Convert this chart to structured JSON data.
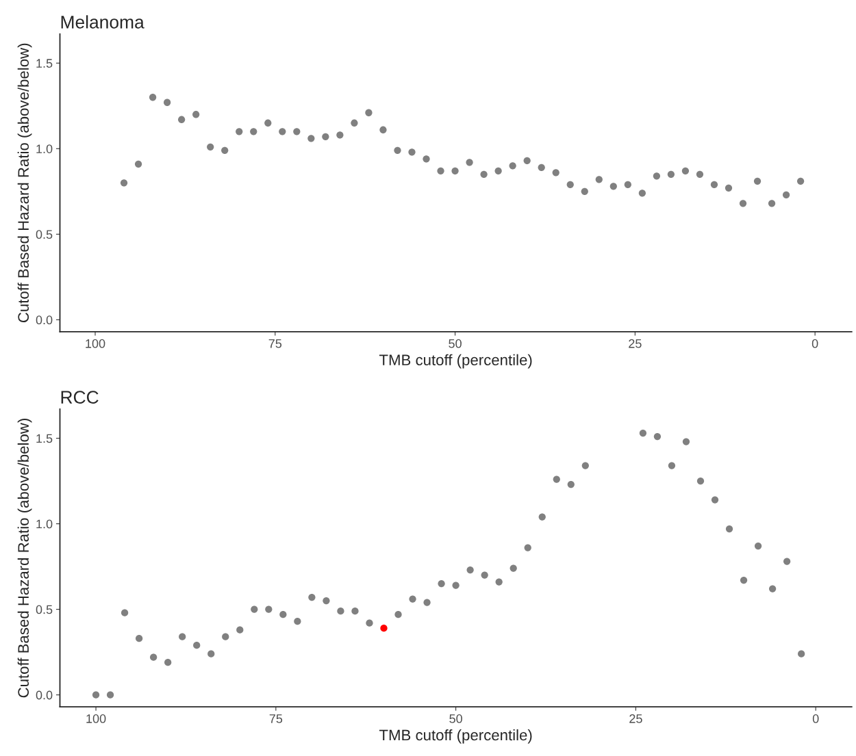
{
  "chart_data": [
    {
      "type": "scatter",
      "title": "Melanoma",
      "xlabel": "TMB cutoff (percentile)",
      "ylabel": "Cutoff Based Hazard Ratio (above/below)",
      "marker": "circle",
      "x": [
        96,
        94,
        92,
        90,
        88,
        86,
        84,
        82,
        80,
        78,
        76,
        74,
        72,
        70,
        68,
        66,
        64,
        62,
        60,
        58,
        56,
        54,
        52,
        50,
        48,
        46,
        44,
        42,
        40,
        38,
        36,
        34,
        32,
        30,
        28,
        26,
        24,
        22,
        20,
        18,
        16,
        14,
        12,
        10,
        8,
        6,
        4,
        2
      ],
      "values": [
        0.8,
        0.91,
        1.3,
        1.27,
        1.17,
        1.2,
        1.01,
        0.99,
        1.1,
        1.1,
        1.15,
        1.1,
        1.1,
        1.06,
        1.07,
        1.08,
        1.15,
        1.21,
        1.11,
        0.99,
        0.98,
        0.94,
        0.87,
        0.87,
        0.92,
        0.85,
        0.87,
        0.9,
        0.93,
        0.89,
        0.86,
        0.79,
        0.75,
        0.82,
        0.78,
        0.79,
        0.74,
        0.84,
        0.85,
        0.87,
        0.85,
        0.79,
        0.77,
        0.68,
        0.81,
        0.68,
        0.73,
        0.81
      ],
      "color": "#808080",
      "xlim": [
        104.9,
        -5.1
      ],
      "ylim": [
        -0.07,
        1.67
      ],
      "xticks": [
        100,
        75,
        50,
        25,
        0
      ],
      "yticks": [
        {
          "value": 0,
          "label": "0.0"
        },
        {
          "value": 0.5,
          "label": "0.5"
        },
        {
          "value": 1,
          "label": "1.0"
        },
        {
          "value": 1.5,
          "label": "1.5"
        }
      ]
    },
    {
      "type": "scatter",
      "title": "RCC",
      "xlabel": "TMB cutoff (percentile)",
      "ylabel": "Cutoff Based Hazard Ratio (above/below)",
      "marker": "circle",
      "x": [
        100,
        98,
        96,
        94,
        92,
        90,
        88,
        86,
        84,
        82,
        80,
        78,
        76,
        74,
        72,
        70,
        68,
        66,
        64,
        62,
        60,
        58,
        56,
        54,
        52,
        50,
        48,
        46,
        44,
        42,
        40,
        38,
        36,
        34,
        32,
        24,
        22,
        20,
        18,
        16,
        14,
        12,
        10,
        8,
        6,
        4,
        2
      ],
      "values": [
        0.0,
        0.0,
        0.48,
        0.33,
        0.22,
        0.19,
        0.34,
        0.29,
        0.24,
        0.34,
        0.38,
        0.5,
        0.5,
        0.47,
        0.43,
        0.57,
        0.55,
        0.49,
        0.49,
        0.42,
        0.39,
        0.47,
        0.56,
        0.54,
        0.65,
        0.64,
        0.73,
        0.7,
        0.66,
        0.74,
        0.86,
        1.04,
        1.26,
        1.23,
        1.34,
        1.53,
        1.51,
        1.34,
        1.48,
        1.25,
        1.14,
        0.97,
        0.67,
        0.87,
        0.62,
        0.78,
        0.24
      ],
      "colors": [
        "#808080",
        "#808080",
        "#808080",
        "#808080",
        "#808080",
        "#808080",
        "#808080",
        "#808080",
        "#808080",
        "#808080",
        "#808080",
        "#808080",
        "#808080",
        "#808080",
        "#808080",
        "#808080",
        "#808080",
        "#808080",
        "#808080",
        "#808080",
        "#ff0000",
        "#808080",
        "#808080",
        "#808080",
        "#808080",
        "#808080",
        "#808080",
        "#808080",
        "#808080",
        "#808080",
        "#808080",
        "#808080",
        "#808080",
        "#808080",
        "#808080",
        "#808080",
        "#808080",
        "#808080",
        "#808080",
        "#808080",
        "#808080",
        "#808080",
        "#808080",
        "#808080",
        "#808080",
        "#808080",
        "#808080"
      ],
      "xlim": [
        105,
        -5
      ],
      "ylim": [
        -0.07,
        1.67
      ],
      "xticks": [
        100,
        75,
        50,
        25,
        0
      ],
      "yticks": [
        {
          "value": 0,
          "label": "0.0"
        },
        {
          "value": 0.5,
          "label": "0.5"
        },
        {
          "value": 1,
          "label": "1.0"
        },
        {
          "value": 1.5,
          "label": "1.5"
        }
      ]
    }
  ]
}
